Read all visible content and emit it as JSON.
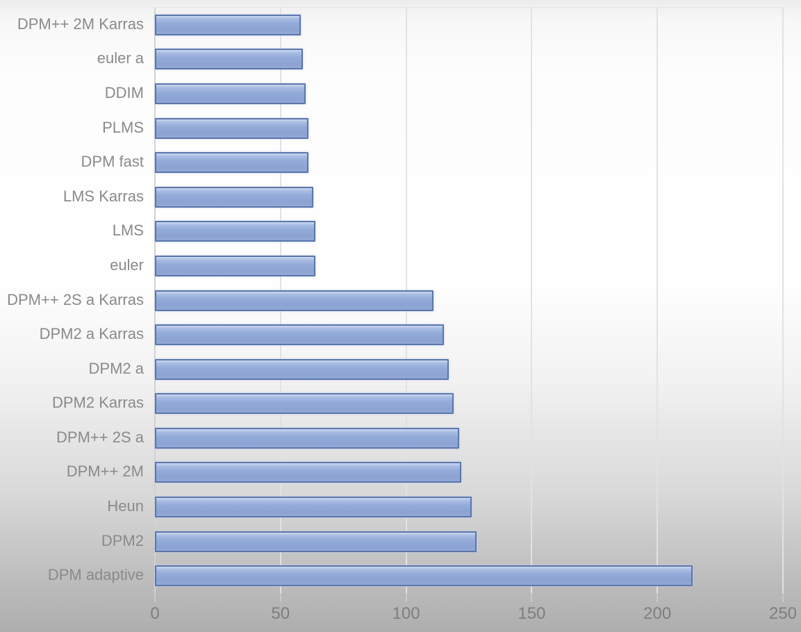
{
  "chart_data": {
    "type": "bar",
    "orientation": "horizontal",
    "title": "",
    "xlabel": "",
    "ylabel": "",
    "categories": [
      "DPM++ 2M Karras",
      "euler a",
      "DDIM",
      "PLMS",
      "DPM fast",
      "LMS Karras",
      "LMS",
      "euler",
      "DPM++ 2S a Karras",
      "DPM2 a Karras",
      "DPM2 a",
      "DPM2 Karras",
      "DPM++ 2S a",
      "DPM++ 2M",
      "Heun",
      "DPM2",
      "DPM adaptive"
    ],
    "values": [
      58,
      59,
      60,
      61,
      61,
      63,
      64,
      64,
      111,
      115,
      117,
      119,
      121,
      122,
      126,
      128,
      214
    ],
    "x_ticks": [
      0,
      50,
      100,
      150,
      200,
      250
    ],
    "xlim": [
      0,
      250
    ],
    "grid": true,
    "legend": null,
    "colors": {
      "bar_fill": "#94abd9",
      "bar_fill_highlight": "#ccd8ee",
      "bar_border": "#5a76ab",
      "gridline": "#e2e2e2",
      "axis_line": "#d2d2d2",
      "category_label": "#8a8a8a",
      "tick_label": "#7e7e7e",
      "background_top": "#fdfdfd",
      "background_bottom": "#aeaeae"
    }
  }
}
